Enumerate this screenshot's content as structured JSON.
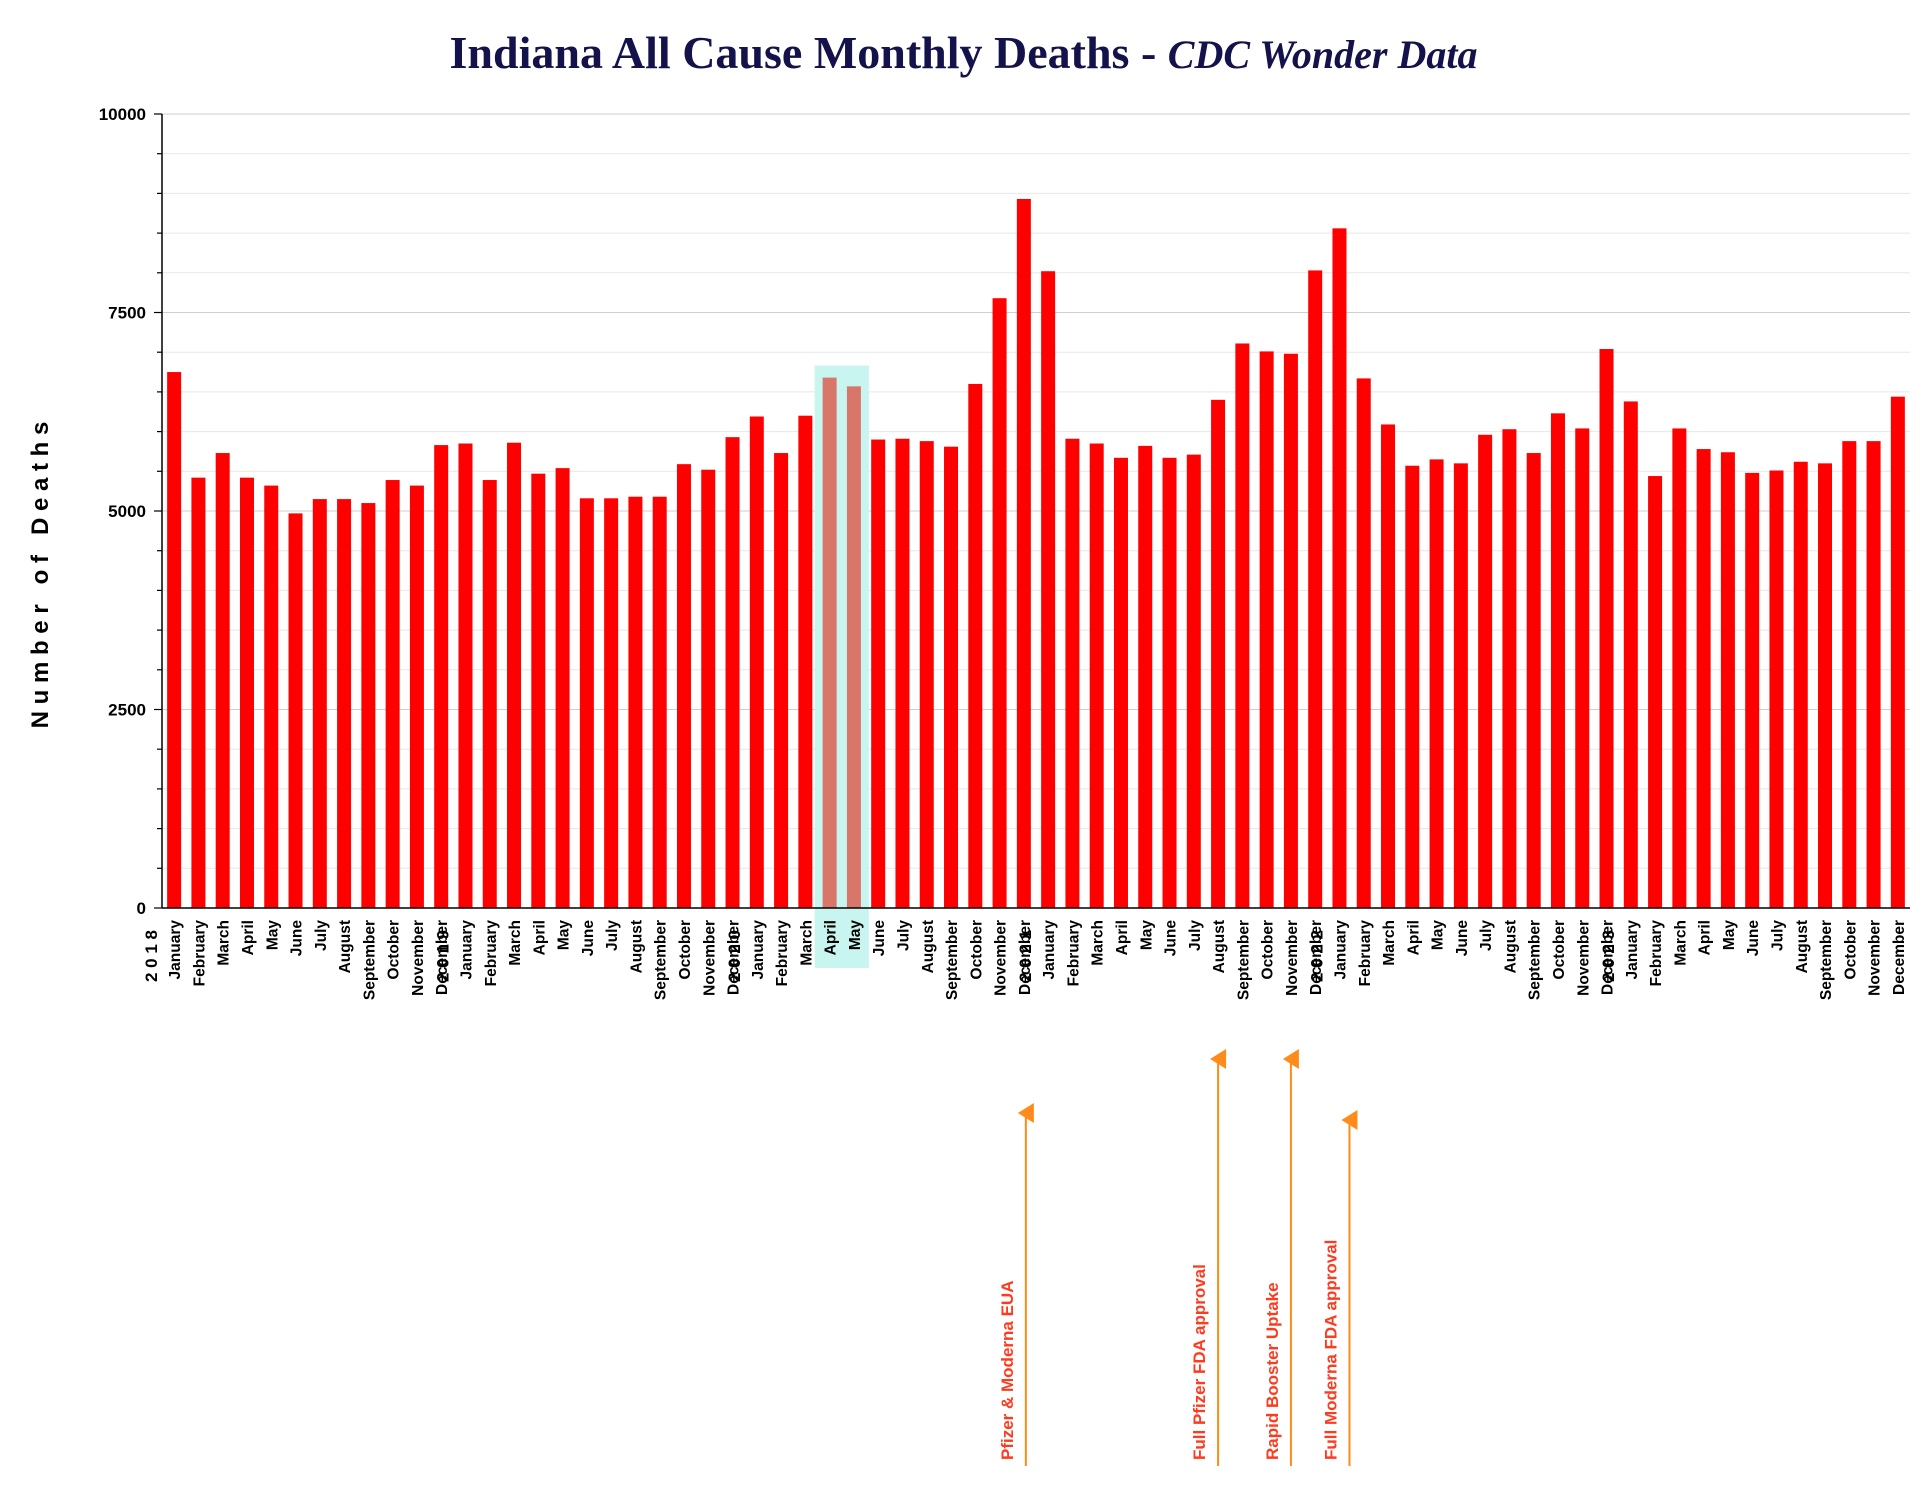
{
  "chart_data": {
    "type": "bar",
    "title": "Indiana All Cause Monthly Deaths - ",
    "subtitle": "CDC Wonder Data",
    "ylabel": "N u m b e r   o f   D e a t h s",
    "xlabel": "",
    "ylim": [
      0,
      10000
    ],
    "yticks": [
      0,
      2500,
      5000,
      7500,
      10000
    ],
    "grid": true,
    "bar_color": "#ff0000",
    "highlight_color": "#d9766a",
    "highlight_box_color": "#c8f5ef",
    "annotation_color": "#ff3b1f",
    "arrow_color": "#ff8c1a",
    "highlight_indices": [
      27,
      28
    ],
    "years": [
      {
        "label": "2 0 1 8",
        "index": 0
      },
      {
        "label": "2 0 1 9",
        "index": 12
      },
      {
        "label": "2 0 2 0",
        "index": 24
      },
      {
        "label": "2 0 2 1",
        "index": 36
      },
      {
        "label": "2 0 2 2",
        "index": 48
      },
      {
        "label": "2 0 2 3",
        "index": 60
      }
    ],
    "categories": [
      "January",
      "February",
      "March",
      "April",
      "May",
      "June",
      "July",
      "August",
      "September",
      "October",
      "November",
      "December",
      "January",
      "February",
      "March",
      "April",
      "May",
      "June",
      "July",
      "August",
      "September",
      "October",
      "November",
      "December",
      "January",
      "February",
      "March",
      "April",
      "May",
      "June",
      "July",
      "August",
      "September",
      "October",
      "November",
      "December",
      "January",
      "February",
      "March",
      "April",
      "May",
      "June",
      "July",
      "August",
      "September",
      "October",
      "November",
      "December",
      "January",
      "February",
      "March",
      "April",
      "May",
      "June",
      "July",
      "August",
      "September",
      "October",
      "November",
      "December",
      "January",
      "February",
      "March",
      "April",
      "May",
      "June",
      "July",
      "August",
      "September",
      "October",
      "November",
      "December"
    ],
    "values": [
      6750,
      5420,
      5730,
      5420,
      5320,
      4970,
      5150,
      5150,
      5100,
      5390,
      5320,
      5830,
      5850,
      5390,
      5860,
      5470,
      5540,
      5160,
      5160,
      5180,
      5180,
      5590,
      5520,
      5930,
      6190,
      5730,
      6200,
      6680,
      6570,
      5900,
      5910,
      5880,
      5810,
      6600,
      7680,
      8930,
      8020,
      5910,
      5850,
      5670,
      5820,
      5670,
      5710,
      6400,
      7110,
      7010,
      6980,
      8030,
      8560,
      6670,
      6090,
      5570,
      5650,
      5600,
      5960,
      6030,
      5730,
      6230,
      6040,
      7040,
      6380,
      5440,
      6040,
      5780,
      5740,
      5480,
      5510,
      5620,
      5600,
      5880,
      5880,
      6440
    ],
    "annotations": [
      {
        "text": "Pfizer & Moderna EUA",
        "index": 35
      },
      {
        "text": "Full Pfizer FDA approval",
        "index": 43
      },
      {
        "text": "Rapid Booster Uptake",
        "index": 46
      },
      {
        "text": "Full Moderna FDA approval",
        "index": 48
      }
    ]
  }
}
